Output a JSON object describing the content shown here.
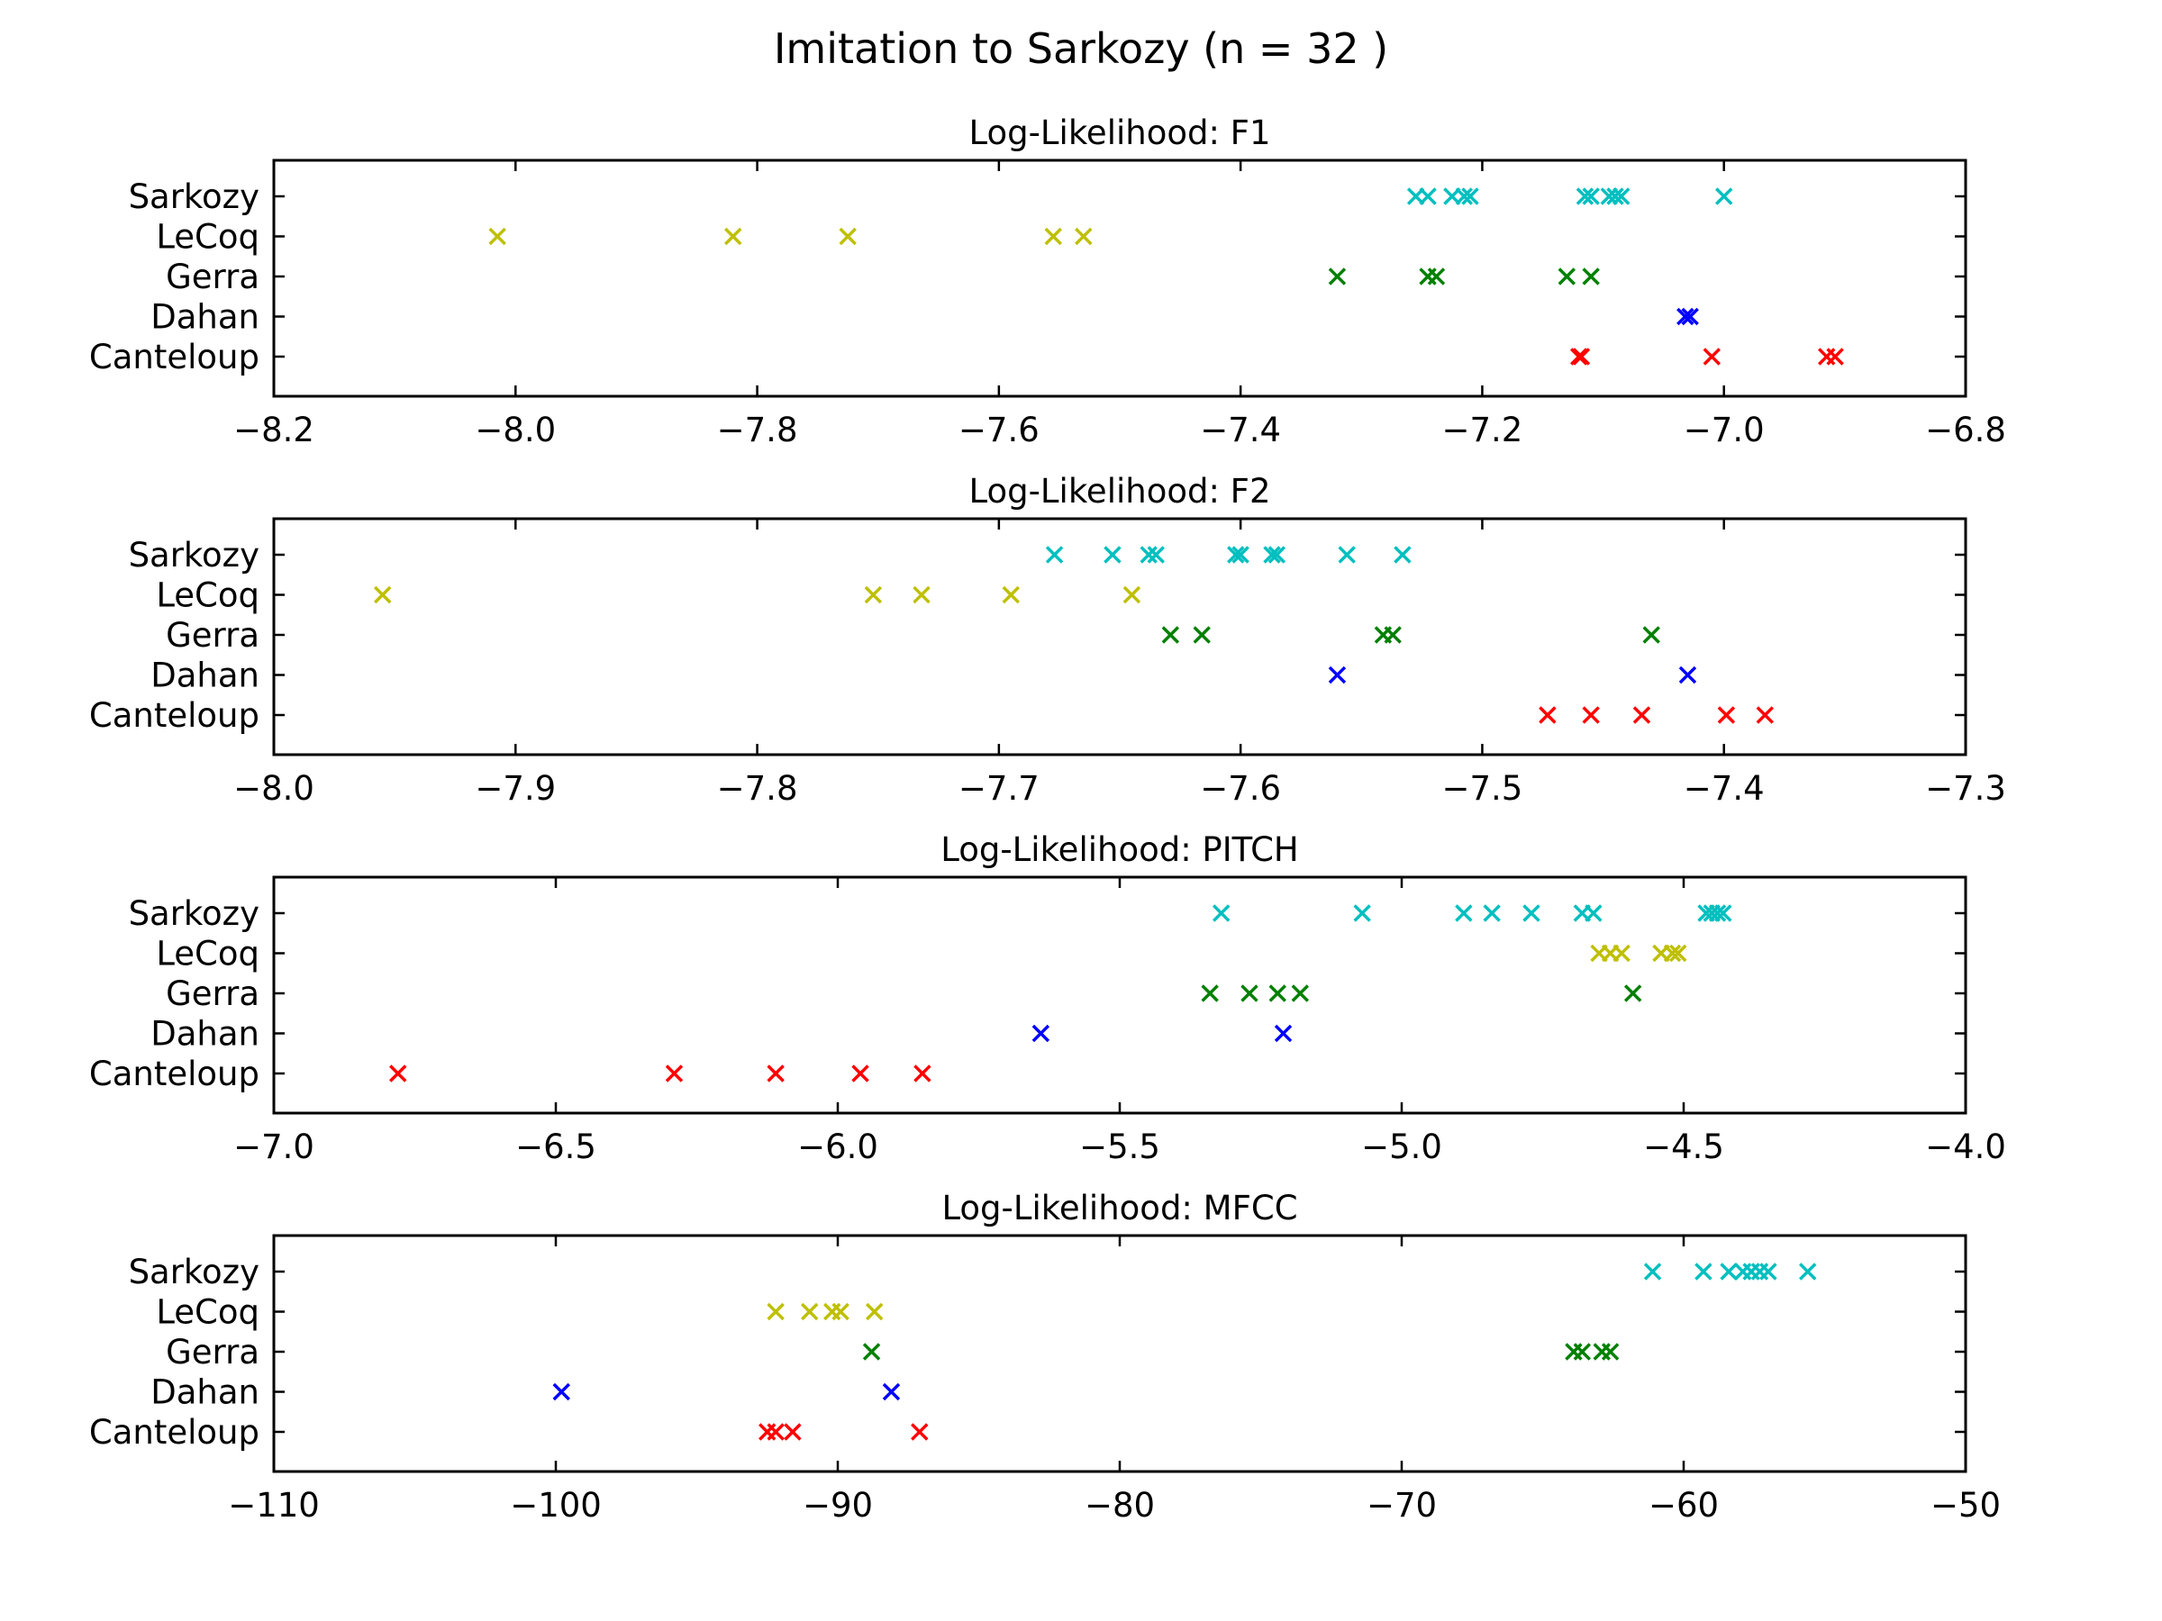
{
  "figure_title": "Imitation to Sarkozy (n = 32 )",
  "colors": {
    "Sarkozy": "#00BFBF",
    "LeCoq": "#BFBF00",
    "Gerra": "#008000",
    "Dahan": "#0000FF",
    "Canteloup": "#FF0000"
  },
  "marker": "x-icon",
  "chart_data": [
    {
      "type": "scatter",
      "title": "Log-Likelihood: F1",
      "xlabel": "",
      "ylabel": "",
      "xlim": [
        -8.2,
        -6.8
      ],
      "xticks": [
        -8.2,
        -8.0,
        -7.8,
        -7.6,
        -7.4,
        -7.2,
        -7.0,
        -6.8
      ],
      "xtick_labels": [
        "−8.2",
        "−8.0",
        "−7.8",
        "−7.6",
        "−7.4",
        "−7.2",
        "−7.0",
        "−6.8"
      ],
      "categories": [
        "Sarkozy",
        "LeCoq",
        "Gerra",
        "Dahan",
        "Canteloup"
      ],
      "grid": false,
      "series": [
        {
          "category": "Sarkozy",
          "x": [
            -7.255,
            -7.245,
            -7.225,
            -7.215,
            -7.21,
            -7.115,
            -7.11,
            -7.095,
            -7.09,
            -7.085,
            -7.0
          ]
        },
        {
          "category": "LeCoq",
          "x": [
            -8.015,
            -7.82,
            -7.725,
            -7.555,
            -7.53
          ]
        },
        {
          "category": "Gerra",
          "x": [
            -7.32,
            -7.245,
            -7.238,
            -7.13,
            -7.11
          ]
        },
        {
          "category": "Dahan",
          "x": [
            -7.032,
            -7.028
          ]
        },
        {
          "category": "Canteloup",
          "x": [
            -7.12,
            -7.118,
            -7.01,
            -6.915,
            -6.908
          ]
        }
      ]
    },
    {
      "type": "scatter",
      "title": "Log-Likelihood: F2",
      "xlabel": "",
      "ylabel": "",
      "xlim": [
        -8.0,
        -7.3
      ],
      "xticks": [
        -8.0,
        -7.9,
        -7.8,
        -7.7,
        -7.6,
        -7.5,
        -7.4,
        -7.3
      ],
      "xtick_labels": [
        "−8.0",
        "−7.9",
        "−7.8",
        "−7.7",
        "−7.6",
        "−7.5",
        "−7.4",
        "−7.3"
      ],
      "categories": [
        "Sarkozy",
        "LeCoq",
        "Gerra",
        "Dahan",
        "Canteloup"
      ],
      "grid": false,
      "series": [
        {
          "category": "Sarkozy",
          "x": [
            -7.677,
            -7.653,
            -7.638,
            -7.635,
            -7.602,
            -7.6,
            -7.587,
            -7.585,
            -7.556,
            -7.533
          ]
        },
        {
          "category": "LeCoq",
          "x": [
            -7.955,
            -7.752,
            -7.732,
            -7.695,
            -7.645
          ]
        },
        {
          "category": "Gerra",
          "x": [
            -7.629,
            -7.616,
            -7.541,
            -7.537,
            -7.43
          ]
        },
        {
          "category": "Dahan",
          "x": [
            -7.56,
            -7.415
          ]
        },
        {
          "category": "Canteloup",
          "x": [
            -7.473,
            -7.455,
            -7.434,
            -7.399,
            -7.383
          ]
        }
      ]
    },
    {
      "type": "scatter",
      "title": "Log-Likelihood: PITCH",
      "xlabel": "",
      "ylabel": "",
      "xlim": [
        -7.0,
        -4.0
      ],
      "xticks": [
        -7.0,
        -6.5,
        -6.0,
        -5.5,
        -5.0,
        -4.5,
        -4.0
      ],
      "xtick_labels": [
        "−7.0",
        "−6.5",
        "−6.0",
        "−5.5",
        "−5.0",
        "−4.5",
        "−4.0"
      ],
      "categories": [
        "Sarkozy",
        "LeCoq",
        "Gerra",
        "Dahan",
        "Canteloup"
      ],
      "grid": false,
      "series": [
        {
          "category": "Sarkozy",
          "x": [
            -5.32,
            -5.07,
            -4.89,
            -4.84,
            -4.77,
            -4.68,
            -4.66,
            -4.46,
            -4.45,
            -4.44,
            -4.43
          ]
        },
        {
          "category": "LeCoq",
          "x": [
            -4.65,
            -4.63,
            -4.61,
            -4.54,
            -4.52,
            -4.51
          ]
        },
        {
          "category": "Gerra",
          "x": [
            -5.34,
            -5.27,
            -5.22,
            -5.18,
            -4.59
          ]
        },
        {
          "category": "Dahan",
          "x": [
            -5.64,
            -5.21
          ]
        },
        {
          "category": "Canteloup",
          "x": [
            -6.78,
            -6.29,
            -6.11,
            -5.96,
            -5.85
          ]
        }
      ]
    },
    {
      "type": "scatter",
      "title": "Log-Likelihood: MFCC",
      "xlabel": "",
      "ylabel": "",
      "xlim": [
        -110,
        -50
      ],
      "xticks": [
        -110,
        -100,
        -90,
        -80,
        -70,
        -60,
        -50
      ],
      "xtick_labels": [
        "−110",
        "−100",
        "−90",
        "−80",
        "−70",
        "−60",
        "−50"
      ],
      "categories": [
        "Sarkozy",
        "LeCoq",
        "Gerra",
        "Dahan",
        "Canteloup"
      ],
      "grid": false,
      "series": [
        {
          "category": "Sarkozy",
          "x": [
            -61.1,
            -59.3,
            -58.4,
            -57.9,
            -57.6,
            -57.3,
            -57.0,
            -55.6
          ]
        },
        {
          "category": "LeCoq",
          "x": [
            -92.2,
            -91.0,
            -90.2,
            -89.9,
            -88.7
          ]
        },
        {
          "category": "Gerra",
          "x": [
            -88.8,
            -63.9,
            -63.6,
            -62.9,
            -62.6
          ]
        },
        {
          "category": "Dahan",
          "x": [
            -99.8,
            -88.1
          ]
        },
        {
          "category": "Canteloup",
          "x": [
            -92.5,
            -92.2,
            -91.6,
            -87.1
          ]
        }
      ]
    }
  ]
}
